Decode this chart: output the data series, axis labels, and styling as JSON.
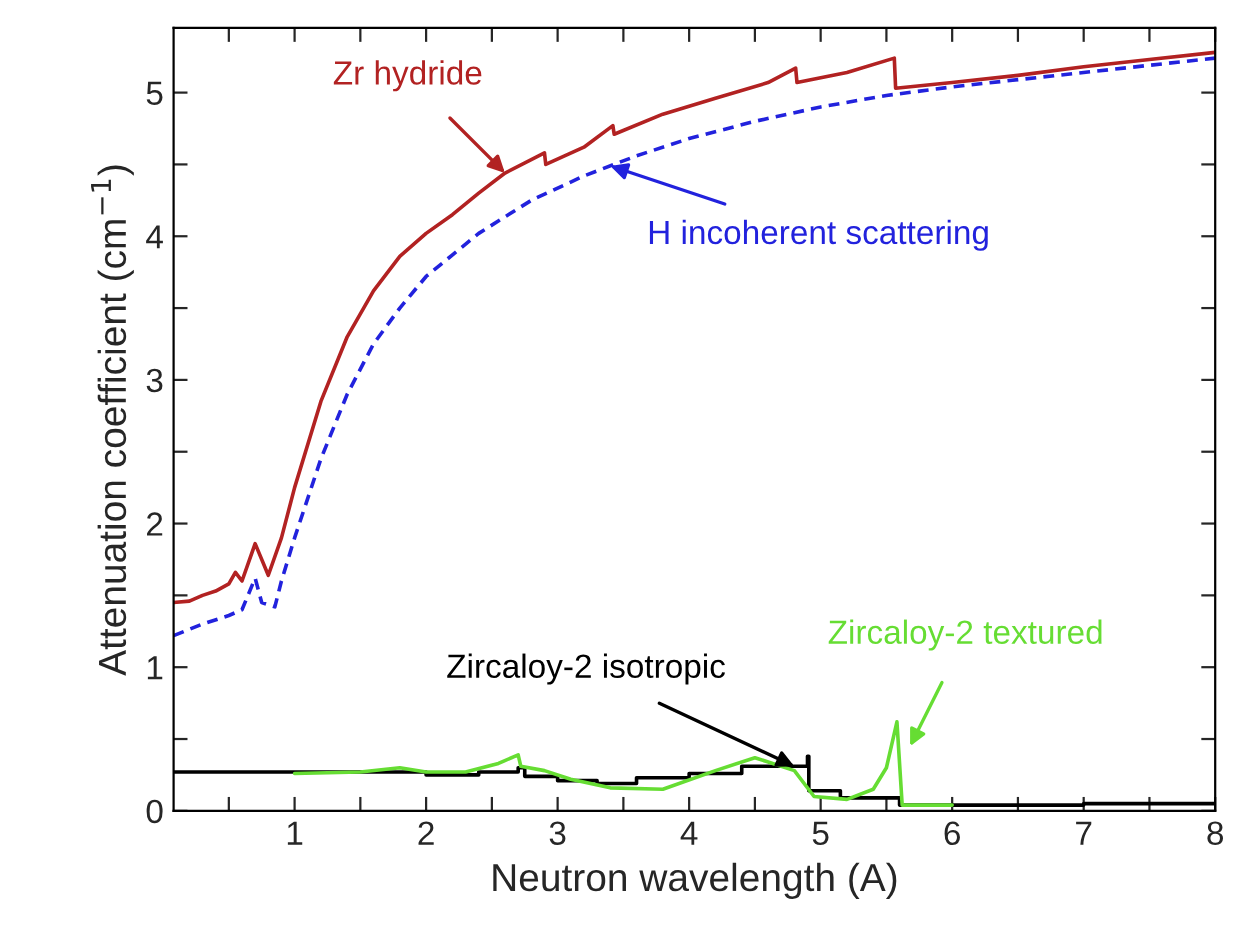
{
  "chart_data": {
    "type": "line",
    "xlabel": "Neutron wavelength (A)",
    "ylabel": "Attenuation coefficient (cm$^{−1}$)",
    "xlim": [
      0.08,
      8
    ],
    "ylim": [
      0,
      5.45
    ],
    "xticks": [
      1,
      2,
      3,
      4,
      5,
      6,
      7,
      8,
      {
        "value": 0.5,
        "label": null
      },
      {
        "value": 1.5,
        "label": null
      },
      {
        "value": 2.5,
        "label": null
      },
      {
        "value": 3.5,
        "label": null
      },
      {
        "value": 4.5,
        "label": null
      },
      {
        "value": 5.5,
        "label": null
      },
      {
        "value": 6.5,
        "label": null
      },
      {
        "value": 7.5,
        "label": null
      }
    ],
    "yticks": [
      0,
      1,
      2,
      3,
      4,
      5,
      {
        "value": 0.5,
        "label": null
      },
      {
        "value": 1.5,
        "label": null
      },
      {
        "value": 2.5,
        "label": null
      },
      {
        "value": 3.5,
        "label": null
      },
      {
        "value": 4.5,
        "label": null
      }
    ],
    "grid": false,
    "legend": false,
    "series": [
      {
        "color": "#b22222",
        "line_style": "solid",
        "x": [
          0.08,
          0.2,
          0.3,
          0.4,
          0.5,
          0.55,
          0.6,
          0.7,
          0.8,
          0.9,
          1.0,
          1.2,
          1.4,
          1.6,
          1.8,
          2.0,
          2.2,
          2.4,
          2.6,
          2.9,
          2.91,
          3.2,
          3.42,
          3.43,
          3.8,
          4.2,
          4.6,
          4.81,
          4.82,
          5.2,
          5.56,
          5.57,
          6.0,
          6.5,
          7.0,
          7.5,
          8.0
        ],
        "values": [
          1.45,
          1.46,
          1.5,
          1.53,
          1.58,
          1.66,
          1.6,
          1.86,
          1.64,
          1.9,
          2.25,
          2.85,
          3.3,
          3.62,
          3.86,
          4.02,
          4.15,
          4.3,
          4.44,
          4.58,
          4.5,
          4.62,
          4.77,
          4.71,
          4.85,
          4.96,
          5.07,
          5.17,
          5.07,
          5.14,
          5.24,
          5.03,
          5.07,
          5.12,
          5.18,
          5.23,
          5.28
        ]
      },
      {
        "color": "#2222dd",
        "line_style": "dashed",
        "x": [
          0.08,
          0.3,
          0.5,
          0.6,
          0.7,
          0.75,
          0.85,
          0.9,
          1.0,
          1.2,
          1.4,
          1.6,
          1.8,
          2.0,
          2.4,
          2.8,
          3.2,
          3.6,
          4.0,
          4.5,
          5.0,
          5.5,
          6.0,
          7.0,
          8.0
        ],
        "values": [
          1.22,
          1.3,
          1.36,
          1.4,
          1.62,
          1.45,
          1.42,
          1.6,
          1.9,
          2.45,
          2.9,
          3.25,
          3.5,
          3.72,
          4.02,
          4.25,
          4.42,
          4.56,
          4.68,
          4.8,
          4.9,
          4.98,
          5.04,
          5.14,
          5.24
        ]
      },
      {
        "color": "#000000",
        "line_style": "solid",
        "type": "step",
        "x": [
          0.08,
          1.5,
          2.0,
          2.4,
          2.7,
          2.75,
          3.0,
          3.3,
          3.6,
          4.0,
          4.4,
          4.9,
          4.91,
          5.15,
          5.6,
          7.0,
          8.0
        ],
        "values": [
          0.27,
          0.27,
          0.25,
          0.27,
          0.3,
          0.24,
          0.21,
          0.19,
          0.23,
          0.26,
          0.31,
          0.38,
          0.14,
          0.09,
          0.04,
          0.05,
          0.05
        ]
      },
      {
        "color": "#66dd33",
        "line_style": "solid",
        "x": [
          1.0,
          1.5,
          1.8,
          2.0,
          2.3,
          2.55,
          2.7,
          2.72,
          2.9,
          3.1,
          3.4,
          3.8,
          4.2,
          4.5,
          4.8,
          4.95,
          5.2,
          5.4,
          5.5,
          5.58,
          5.62,
          6.0
        ],
        "values": [
          0.26,
          0.27,
          0.3,
          0.27,
          0.27,
          0.33,
          0.39,
          0.31,
          0.28,
          0.22,
          0.16,
          0.15,
          0.28,
          0.37,
          0.28,
          0.1,
          0.08,
          0.15,
          0.3,
          0.62,
          0.04,
          0.04
        ]
      }
    ],
    "annotations": [
      {
        "text": "Zr hydride",
        "x": 2.6,
        "y": 4.44
      },
      {
        "text": "H incoherent scattering",
        "x": 3.4,
        "y": 4.49
      },
      {
        "text": "Zircaloy-2 isotropic",
        "x": 4.8,
        "y": 0.31
      },
      {
        "text": "Zircaloy-2 textured",
        "x": 5.68,
        "y": 0.45
      }
    ]
  }
}
